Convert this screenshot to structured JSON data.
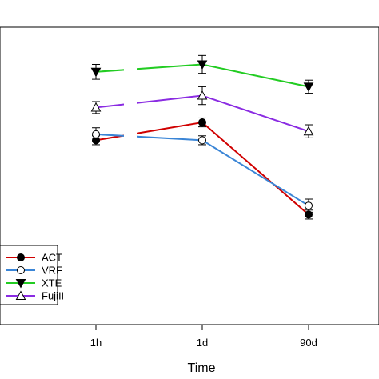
{
  "chart_data": {
    "type": "line",
    "xlabel": "Time",
    "categories": [
      "1h",
      "1d",
      "90d"
    ],
    "ylim": [
      0,
      100
    ],
    "series": [
      {
        "name": "ACT",
        "color": "#d00000",
        "marker": "filled-circle",
        "values": [
          62,
          68,
          37
        ],
        "errors": [
          1.5,
          1.5,
          1.5
        ]
      },
      {
        "name": "VRF",
        "color": "#3a85d6",
        "marker": "open-circle",
        "values": [
          64,
          62,
          40
        ],
        "errors": [
          2.2,
          1.5,
          2.2
        ]
      },
      {
        "name": "XTE",
        "color": "#22cc22",
        "marker": "filled-triangle-down",
        "values": [
          85,
          87.5,
          80
        ],
        "errors": [
          2.5,
          3.0,
          2.2
        ]
      },
      {
        "name": "FujiII",
        "color": "#8a2be2",
        "marker": "open-triangle-up",
        "values": [
          73,
          77,
          65
        ],
        "errors": [
          2.0,
          3.0,
          2.2
        ]
      }
    ],
    "legend": {
      "position": "bottom-left",
      "labels": [
        "ACT",
        "VRF",
        "XTE",
        "FujiII"
      ]
    },
    "grid": false
  }
}
